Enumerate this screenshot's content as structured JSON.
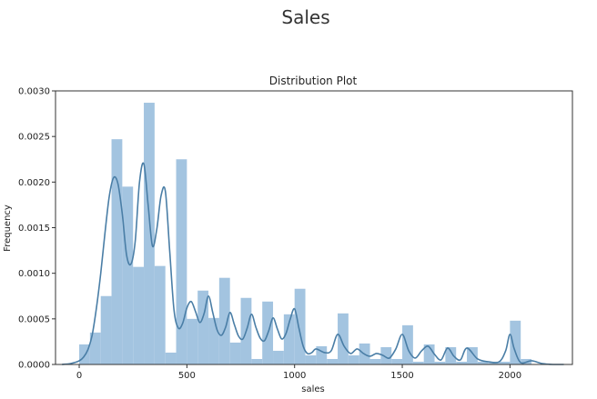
{
  "figure": {
    "suptitle": "Sales"
  },
  "chart_data": {
    "type": "bar",
    "title": "Distribution Plot",
    "xlabel": "sales",
    "ylabel": "Frequency",
    "xlim": [
      -110,
      2290
    ],
    "ylim": [
      0,
      0.003
    ],
    "x_ticks": [
      0,
      500,
      1000,
      1500,
      2000
    ],
    "y_ticks": [
      0.0,
      0.0005,
      0.001,
      0.0015,
      0.002,
      0.0025,
      0.003
    ],
    "x_tick_labels": [
      "0",
      "500",
      "1000",
      "1500",
      "2000"
    ],
    "y_tick_labels": [
      "0.0000",
      "0.0005",
      "0.0010",
      "0.0015",
      "0.0020",
      "0.0025",
      "0.0030"
    ],
    "bin_width": 50,
    "histogram": {
      "bin_starts": [
        0,
        50,
        100,
        150,
        200,
        250,
        300,
        350,
        400,
        450,
        500,
        550,
        600,
        650,
        700,
        750,
        800,
        850,
        900,
        950,
        1000,
        1050,
        1100,
        1150,
        1200,
        1250,
        1300,
        1350,
        1400,
        1450,
        1500,
        1550,
        1600,
        1650,
        1700,
        1750,
        1800,
        1850,
        1900,
        1950,
        2000,
        2050
      ],
      "values": [
        0.00022,
        0.00035,
        0.00075,
        0.00247,
        0.00195,
        0.00107,
        0.00287,
        0.00108,
        0.00013,
        0.00225,
        0.0005,
        0.00081,
        0.00051,
        0.00095,
        0.00024,
        0.00073,
        6e-05,
        0.00069,
        0.00015,
        0.00055,
        0.00083,
        0.0001,
        0.0002,
        6e-05,
        0.00056,
        0.0001,
        0.00023,
        6e-05,
        0.00019,
        6e-05,
        0.00043,
        3e-05,
        0.00022,
        3e-05,
        0.00019,
        3e-05,
        0.00019,
        3e-05,
        3e-05,
        3e-05,
        0.00048,
        6e-05
      ]
    },
    "kde": {
      "x": [
        -80,
        -40,
        0,
        20,
        40,
        60,
        80,
        100,
        120,
        140,
        160,
        180,
        200,
        220,
        240,
        260,
        280,
        300,
        320,
        340,
        360,
        380,
        400,
        420,
        440,
        460,
        480,
        500,
        520,
        540,
        560,
        580,
        600,
        620,
        640,
        660,
        680,
        700,
        720,
        740,
        760,
        780,
        800,
        820,
        840,
        860,
        880,
        900,
        920,
        940,
        960,
        980,
        1000,
        1020,
        1040,
        1060,
        1080,
        1100,
        1140,
        1170,
        1200,
        1230,
        1260,
        1290,
        1320,
        1350,
        1380,
        1410,
        1440,
        1470,
        1500,
        1530,
        1560,
        1590,
        1620,
        1650,
        1680,
        1710,
        1740,
        1770,
        1800,
        1850,
        1900,
        1950,
        1980,
        2000,
        2020,
        2050,
        2100,
        2150,
        2200,
        2250
      ],
      "y": [
        0.0,
        1e-05,
        4e-05,
        8e-05,
        0.00016,
        0.00032,
        0.00062,
        0.001,
        0.00145,
        0.00185,
        0.00205,
        0.00198,
        0.00165,
        0.0012,
        0.0011,
        0.00135,
        0.002,
        0.0022,
        0.00175,
        0.0013,
        0.00148,
        0.00185,
        0.0019,
        0.00125,
        0.0006,
        0.0004,
        0.00045,
        0.00062,
        0.00069,
        0.00058,
        0.00046,
        0.00056,
        0.00075,
        0.00057,
        0.00038,
        0.00032,
        0.00041,
        0.00057,
        0.00044,
        0.00031,
        0.00028,
        0.0004,
        0.00055,
        0.00041,
        0.00029,
        0.00026,
        0.00037,
        0.00051,
        0.00039,
        0.00028,
        0.00034,
        0.0005,
        0.00061,
        0.0004,
        0.0002,
        0.00012,
        0.00013,
        0.00017,
        0.00013,
        0.00015,
        0.00033,
        0.0002,
        0.00012,
        0.00017,
        0.00012,
        9e-05,
        0.00012,
        0.0001,
        7e-05,
        0.00017,
        0.00033,
        0.00015,
        7e-05,
        0.00015,
        0.0002,
        0.00011,
        5e-05,
        0.00018,
        9e-05,
        5e-05,
        0.00018,
        6e-05,
        3e-05,
        3e-05,
        0.00015,
        0.00033,
        0.00017,
        2e-05,
        4e-05,
        1e-05,
        0.0,
        0.0
      ]
    },
    "colors": {
      "bars": "#a3c4e0",
      "kde": "#4a7ea6",
      "axes": "#333333"
    },
    "grid": false
  }
}
